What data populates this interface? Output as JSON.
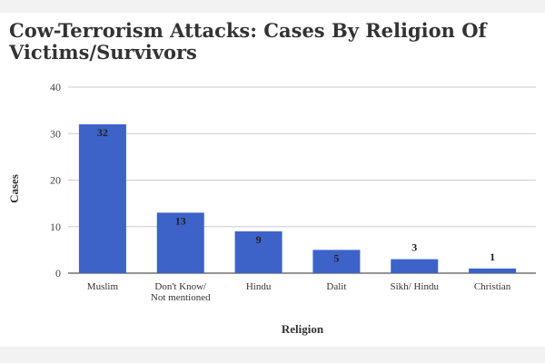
{
  "chart_data": {
    "type": "bar",
    "title": "Cow-Terrorism Attacks: Cases By Religion Of Victims/Survivors",
    "xlabel": "Religion",
    "ylabel": "Cases",
    "categories": [
      [
        "Muslim"
      ],
      [
        "Don't Know/",
        "Not mentioned"
      ],
      [
        "Hindu"
      ],
      [
        "Dalit"
      ],
      [
        "Sikh/ Hindu"
      ],
      [
        "Christian"
      ]
    ],
    "values": [
      32,
      13,
      9,
      5,
      3,
      1
    ],
    "ylim": [
      0,
      40
    ],
    "yticks": [
      0,
      10,
      20,
      30,
      40
    ],
    "grid": true,
    "bar_color": "#3d63c9"
  }
}
